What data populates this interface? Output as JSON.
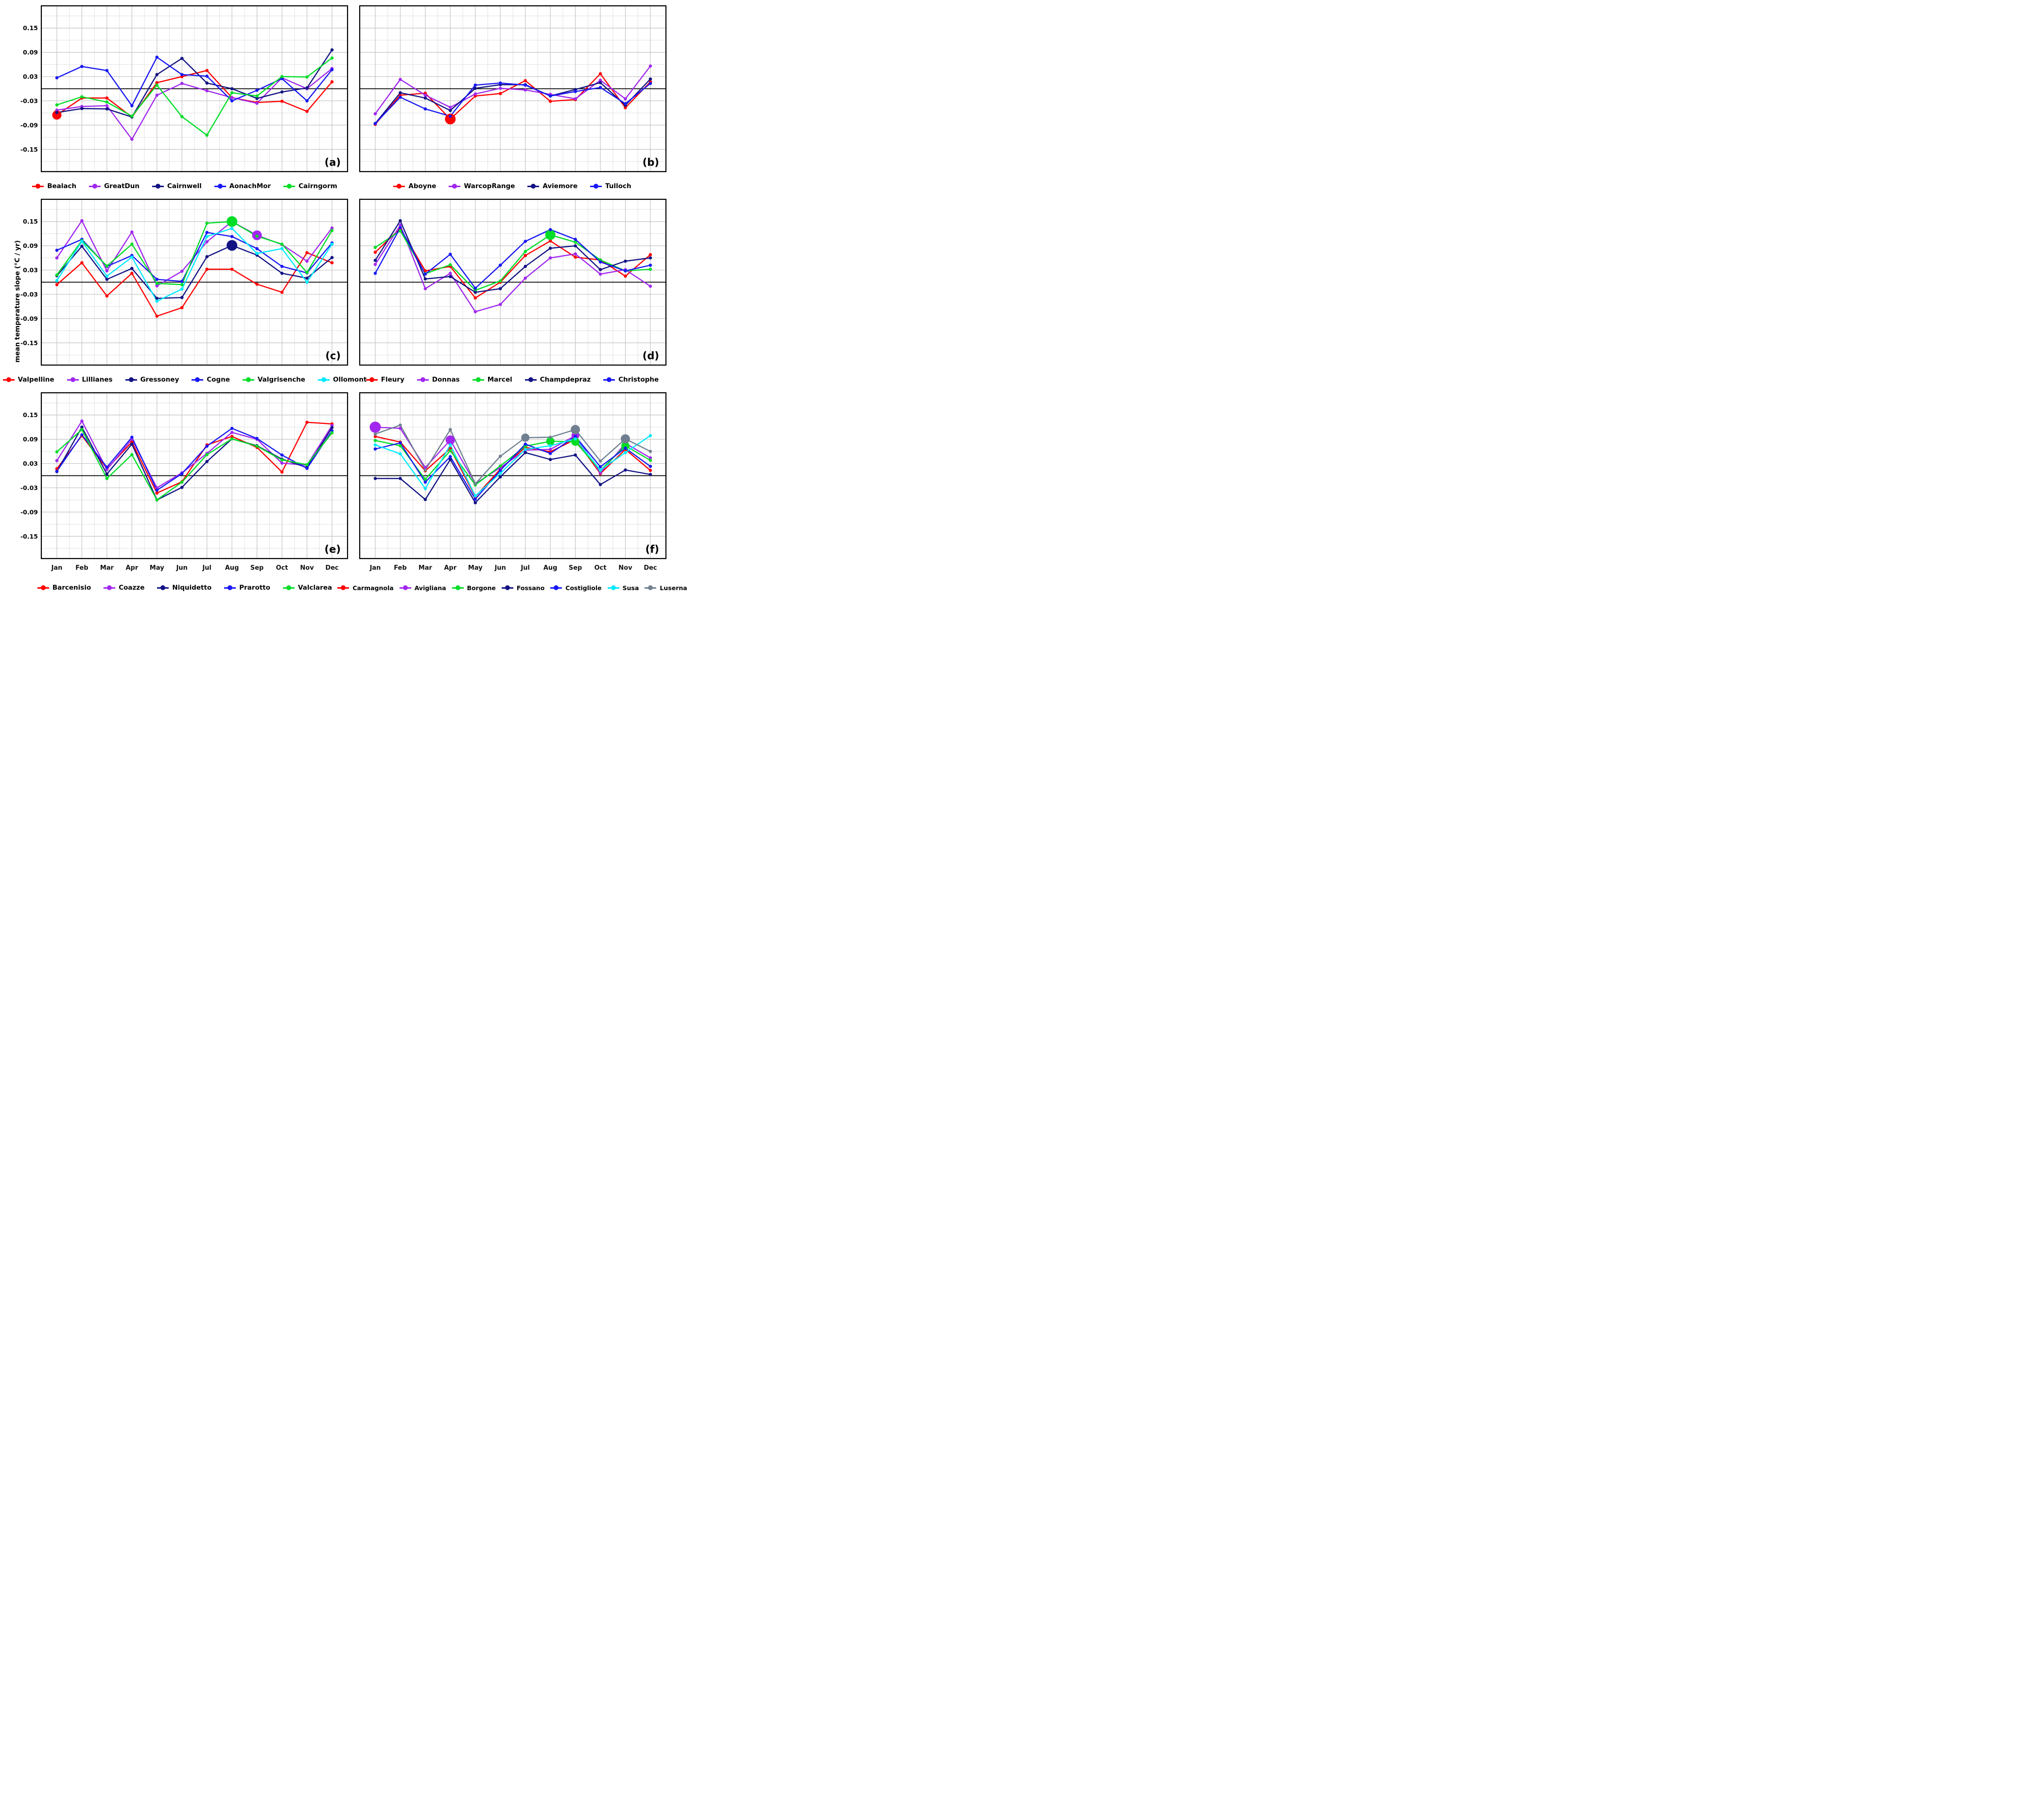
{
  "figure": {
    "y_axis_title": "mean temperature slope (°C / yr)",
    "months": [
      "Jan",
      "Feb",
      "Mar",
      "Apr",
      "May",
      "Jun",
      "Jul",
      "Aug",
      "Sep",
      "Oct",
      "Nov",
      "Dec"
    ],
    "y_tick_labels": [
      "0.15",
      "0.09",
      "0.03",
      "-0.03",
      "-0.09",
      "-0.15"
    ],
    "y_tick_values": [
      0.15,
      0.09,
      0.03,
      -0.03,
      -0.09,
      -0.15
    ],
    "ylim": [
      -0.205,
      0.205
    ],
    "grid": "on",
    "zero_line_color": "#000000",
    "major_grid_color": "#c3c3c3",
    "minor_grid_color": "#dedede"
  },
  "palette": {
    "red": "#ff0000",
    "purple": "#a127ee",
    "navy": "#121283",
    "blue": "#1717f5",
    "green": "#00dd26",
    "cyan": "#00eaff",
    "gray": "#708090"
  },
  "chart_data": [
    {
      "type": "line",
      "panel_letter": "(a)",
      "show_y_labels": true,
      "show_x_labels": false,
      "series": [
        {
          "name": "Bealach",
          "color": "red",
          "values": [
            -0.065,
            -0.023,
            -0.023,
            -0.07,
            0.015,
            0.03,
            0.045,
            -0.022,
            -0.034,
            -0.031,
            -0.056,
            0.017
          ],
          "big": [
            {
              "m": 0,
              "size": 9.5
            }
          ]
        },
        {
          "name": "GreatDun",
          "color": "purple",
          "values": [
            -0.053,
            -0.044,
            -0.042,
            -0.125,
            -0.016,
            0.013,
            -0.005,
            -0.022,
            -0.036,
            0.027,
            0.0,
            0.05
          ],
          "big": []
        },
        {
          "name": "Cairnwell",
          "color": "navy",
          "values": [
            -0.059,
            -0.049,
            -0.05,
            -0.07,
            0.035,
            0.075,
            0.014,
            0.0,
            -0.024,
            -0.008,
            0.002,
            0.096
          ],
          "big": []
        },
        {
          "name": "AonachMor",
          "color": "blue",
          "values": [
            0.027,
            0.055,
            0.045,
            -0.042,
            0.078,
            0.035,
            0.031,
            -0.03,
            -0.004,
            0.025,
            -0.03,
            0.047
          ],
          "big": []
        },
        {
          "name": "Cairngorm",
          "color": "green",
          "values": [
            -0.04,
            -0.02,
            -0.033,
            -0.068,
            0.009,
            -0.069,
            -0.115,
            -0.01,
            -0.018,
            0.03,
            0.029,
            0.076
          ],
          "big": []
        }
      ]
    },
    {
      "type": "line",
      "panel_letter": "(b)",
      "show_y_labels": false,
      "show_x_labels": false,
      "series": [
        {
          "name": "Aboyne",
          "color": "red",
          "values": [
            -0.088,
            -0.016,
            -0.011,
            -0.075,
            -0.018,
            -0.012,
            0.02,
            -0.031,
            -0.027,
            0.037,
            -0.047,
            0.017
          ],
          "big": [
            {
              "m": 3,
              "size": 11
            }
          ]
        },
        {
          "name": "WarcopRange",
          "color": "purple",
          "values": [
            -0.062,
            0.023,
            -0.016,
            -0.046,
            -0.013,
            0.001,
            -0.003,
            -0.014,
            -0.025,
            0.021,
            -0.025,
            0.056
          ],
          "big": []
        },
        {
          "name": "Aviemore",
          "color": "navy",
          "values": [
            -0.086,
            -0.01,
            -0.023,
            -0.054,
            0.001,
            0.01,
            0.01,
            -0.018,
            -0.002,
            0.015,
            -0.041,
            0.024
          ],
          "big": []
        },
        {
          "name": "Tulloch",
          "color": "blue",
          "values": [
            -0.086,
            -0.021,
            -0.05,
            -0.068,
            0.009,
            0.014,
            0.009,
            -0.018,
            -0.007,
            0.003,
            -0.037,
            0.013
          ],
          "big": []
        }
      ]
    },
    {
      "type": "line",
      "panel_letter": "(c)",
      "show_y_labels": true,
      "show_x_labels": false,
      "series": [
        {
          "name": "Valpelline",
          "color": "red",
          "values": [
            -0.006,
            0.048,
            -0.034,
            0.022,
            -0.084,
            -0.063,
            0.032,
            0.032,
            -0.005,
            -0.025,
            0.073,
            0.048
          ],
          "big": []
        },
        {
          "name": "Lillianes",
          "color": "purple",
          "values": [
            0.06,
            0.152,
            0.028,
            0.124,
            -0.009,
            0.027,
            0.1,
            0.15,
            0.116,
            0.093,
            0.052,
            0.134
          ],
          "big": [
            {
              "m": 8,
              "size": 10
            }
          ]
        },
        {
          "name": "Gressoney",
          "color": "navy",
          "values": [
            0.016,
            0.089,
            0.007,
            0.034,
            -0.04,
            -0.038,
            0.063,
            0.091,
            0.067,
            0.022,
            0.01,
            0.061
          ],
          "big": [
            {
              "m": 7,
              "size": 11
            }
          ]
        },
        {
          "name": "Cogne",
          "color": "blue",
          "values": [
            0.079,
            0.106,
            0.039,
            0.066,
            0.007,
            0.002,
            0.123,
            0.113,
            0.083,
            0.039,
            0.023,
            0.097
          ],
          "big": []
        },
        {
          "name": "Valgrisenche",
          "color": "green",
          "values": [
            0.018,
            0.103,
            0.04,
            0.094,
            -0.003,
            -0.006,
            0.146,
            0.15,
            0.114,
            0.094,
            0.024,
            0.128
          ],
          "big": [
            {
              "m": 7,
              "size": 11
            }
          ]
        },
        {
          "name": "Ollomont",
          "color": "cyan",
          "values": [
            0.004,
            0.101,
            0.015,
            0.062,
            -0.047,
            -0.017,
            0.113,
            0.133,
            0.071,
            0.083,
            0.0,
            0.094
          ],
          "big": []
        }
      ]
    },
    {
      "type": "line",
      "panel_letter": "(d)",
      "show_y_labels": false,
      "show_x_labels": false,
      "series": [
        {
          "name": "Fleury",
          "color": "red",
          "values": [
            0.074,
            0.133,
            0.028,
            0.039,
            -0.039,
            0.0,
            0.066,
            0.102,
            0.062,
            0.055,
            0.015,
            0.068
          ],
          "big": []
        },
        {
          "name": "Donnas",
          "color": "purple",
          "values": [
            0.044,
            0.141,
            -0.016,
            0.022,
            -0.073,
            -0.055,
            0.01,
            0.06,
            0.07,
            0.02,
            0.031,
            -0.01
          ],
          "big": []
        },
        {
          "name": "Marcel",
          "color": "green",
          "values": [
            0.086,
            0.127,
            0.021,
            0.043,
            -0.02,
            0.003,
            0.076,
            0.117,
            0.099,
            0.055,
            0.028,
            0.032
          ],
          "big": [
            {
              "m": 7,
              "size": 10.5
            }
          ]
        },
        {
          "name": "Champdepraz",
          "color": "navy",
          "values": [
            0.054,
            0.152,
            0.008,
            0.014,
            -0.025,
            -0.016,
            0.039,
            0.084,
            0.09,
            0.031,
            0.052,
            0.06
          ],
          "big": []
        },
        {
          "name": "Christophe",
          "color": "blue",
          "values": [
            0.022,
            0.135,
            0.02,
            0.069,
            -0.015,
            0.042,
            0.101,
            0.13,
            0.106,
            0.05,
            0.028,
            0.042
          ],
          "big": []
        }
      ]
    },
    {
      "type": "line",
      "panel_letter": "(e)",
      "show_y_labels": true,
      "show_x_labels": true,
      "series": [
        {
          "name": "Barcenisio",
          "color": "red",
          "values": [
            0.017,
            0.099,
            0.017,
            0.083,
            -0.043,
            -0.015,
            0.076,
            0.097,
            0.07,
            0.009,
            0.132,
            0.128
          ],
          "big": []
        },
        {
          "name": "Coazze",
          "color": "purple",
          "values": [
            0.037,
            0.135,
            0.015,
            0.09,
            -0.03,
            0.007,
            0.055,
            0.107,
            0.09,
            0.031,
            0.026,
            0.124
          ],
          "big": []
        },
        {
          "name": "Niquidetto",
          "color": "navy",
          "values": [
            0.01,
            0.12,
            0.004,
            0.078,
            -0.06,
            -0.029,
            0.035,
            0.091,
            0.074,
            0.041,
            0.02,
            0.119
          ],
          "big": []
        },
        {
          "name": "Prarotto",
          "color": "blue",
          "values": [
            0.011,
            0.101,
            0.021,
            0.095,
            -0.036,
            0.005,
            0.073,
            0.117,
            0.092,
            0.051,
            0.018,
            0.111
          ],
          "big": []
        },
        {
          "name": "Valclarea",
          "color": "green",
          "values": [
            0.059,
            0.114,
            -0.007,
            0.052,
            -0.06,
            -0.016,
            0.052,
            0.091,
            0.073,
            0.039,
            0.027,
            0.106
          ],
          "big": []
        }
      ]
    },
    {
      "type": "line",
      "panel_letter": "(f)",
      "show_y_labels": false,
      "show_x_labels": true,
      "legend_tight": true,
      "series": [
        {
          "name": "Carmagnola",
          "color": "red",
          "values": [
            0.097,
            0.083,
            0.012,
            0.067,
            -0.052,
            0.016,
            0.07,
            0.059,
            0.09,
            0.005,
            0.065,
            0.013
          ],
          "big": []
        },
        {
          "name": "Avigliana",
          "color": "purple",
          "values": [
            0.12,
            0.117,
            0.02,
            0.088,
            -0.02,
            0.02,
            0.063,
            0.065,
            0.099,
            0.007,
            0.08,
            0.044
          ],
          "big": [
            {
              "m": 0,
              "size": 11.5
            },
            {
              "m": 3,
              "size": 9.5
            },
            {
              "m": 8,
              "size": 8
            }
          ]
        },
        {
          "name": "Borgone",
          "color": "green",
          "values": [
            0.087,
            0.074,
            -0.009,
            0.062,
            -0.023,
            0.024,
            0.073,
            0.085,
            0.084,
            0.013,
            0.074,
            0.038
          ],
          "big": [
            {
              "m": 7,
              "size": 8.5
            },
            {
              "m": 8,
              "size": 8.5
            },
            {
              "m": 10,
              "size": 8.5
            }
          ]
        },
        {
          "name": "Fossano",
          "color": "navy",
          "values": [
            -0.007,
            -0.007,
            -0.059,
            0.04,
            -0.067,
            -0.003,
            0.057,
            0.04,
            0.051,
            -0.022,
            0.014,
            0.003
          ],
          "big": []
        },
        {
          "name": "Costigliole",
          "color": "blue",
          "values": [
            0.066,
            0.081,
            -0.016,
            0.047,
            -0.058,
            0.013,
            0.078,
            0.055,
            0.097,
            0.022,
            0.068,
            0.023
          ],
          "big": []
        },
        {
          "name": "Susa",
          "color": "cyan",
          "values": [
            0.076,
            0.054,
            -0.032,
            0.076,
            -0.05,
            0.006,
            0.065,
            0.074,
            0.091,
            0.014,
            0.057,
            0.099
          ],
          "big": []
        },
        {
          "name": "Luserna",
          "color": "gray",
          "values": [
            0.103,
            0.125,
            0.014,
            0.114,
            -0.02,
            0.048,
            0.094,
            0.095,
            0.114,
            0.036,
            0.091,
            0.06
          ],
          "big": [
            {
              "m": 6,
              "size": 8.5
            },
            {
              "m": 8,
              "size": 9.5
            },
            {
              "m": 10,
              "size": 9.5
            }
          ]
        }
      ]
    }
  ]
}
